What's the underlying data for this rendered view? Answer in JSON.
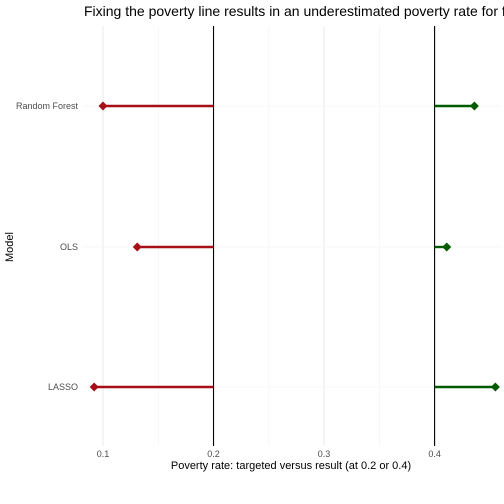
{
  "chart_data": {
    "type": "dot-segment",
    "title": "Fixing the poverty line results in an underestimated poverty rate for for lo",
    "xlabel": "Poverty rate: targeted versus result (at 0.2 or 0.4)",
    "ylabel": "Model",
    "xlim": [
      0.081,
      0.461
    ],
    "x_ticks": [
      0.1,
      0.2,
      0.3,
      0.4
    ],
    "x_tick_labels": [
      "0.1",
      "0.2",
      "0.3",
      "0.4"
    ],
    "categories": [
      "Random Forest",
      "OLS",
      "LASSO"
    ],
    "reference_lines": [
      0.2,
      0.4
    ],
    "grid": "vertical major and minor lines",
    "series": [
      {
        "target": 0.2,
        "color": "#a50f15",
        "values": [
          0.1,
          0.131,
          0.092
        ]
      },
      {
        "target": 0.4,
        "color": "#005a00",
        "values": [
          0.436,
          0.411,
          0.455
        ]
      }
    ]
  }
}
